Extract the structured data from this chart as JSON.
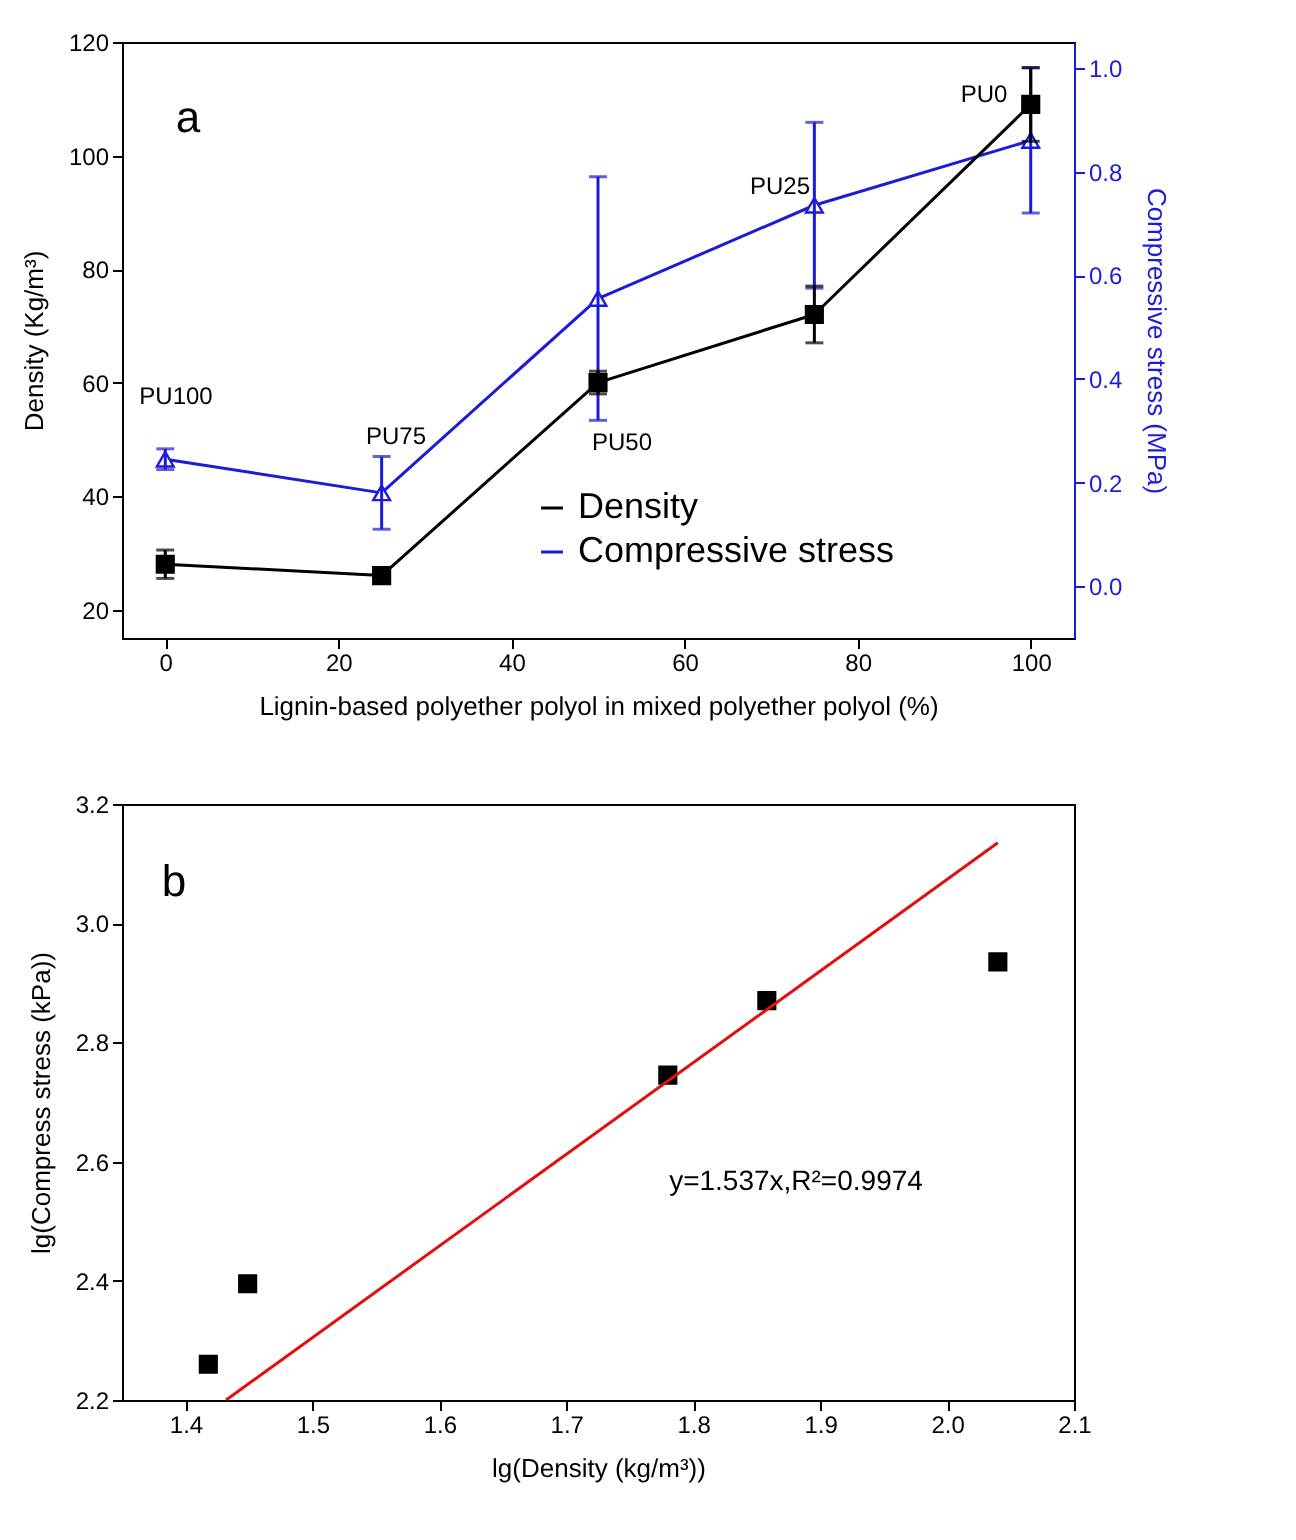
{
  "chart_data": [
    {
      "type": "line",
      "xlabel": "Lignin-based polyether polyol in mixed polyether polyol (%)",
      "ylabel": "Density (Kg/m³)",
      "y2label": "Compressive stress (MPa)",
      "x": [
        0,
        25,
        50,
        75,
        100
      ],
      "xlim": [
        -5,
        105
      ],
      "xticks": [
        0,
        20,
        40,
        60,
        80,
        100
      ],
      "ylim": [
        15,
        120
      ],
      "yticks": [
        20,
        40,
        60,
        80,
        100,
        120
      ],
      "y2lim": [
        -0.1,
        1.05
      ],
      "y2ticks": [
        {
          "value": 0,
          "label": "0.0"
        },
        0.2,
        0.4,
        0.6,
        0.8,
        {
          "value": 1,
          "label": "1.0"
        }
      ],
      "series": [
        {
          "name": "Density",
          "color": "#000000",
          "marker": "square",
          "values": [
            28,
            26,
            60,
            72,
            109
          ],
          "errors": [
            2.5,
            null,
            2,
            5,
            6.5
          ]
        },
        {
          "name": "Compressive stress",
          "color": "#1c1cd6",
          "marker": "triangle",
          "axis": "y2",
          "values": [
            0.245,
            0.18,
            0.555,
            0.735,
            0.86
          ],
          "errors": [
            0.02,
            0.07,
            0.235,
            0.16,
            0.14
          ]
        }
      ],
      "legend": "bottom right",
      "grid": false,
      "annotations": [
        "a",
        "PU100",
        "PU75",
        "PU50",
        "PU25",
        "PU0"
      ]
    },
    {
      "type": "scatter",
      "xlabel": "lg(Density (kg/m³))",
      "ylabel": "lg(Compress stress (kPa))",
      "xlim": [
        1.35,
        2.1
      ],
      "xticks": [
        1.4,
        1.5,
        1.6,
        1.7,
        1.8,
        1.9,
        {
          "value": 2,
          "label": "2.0"
        },
        2.1
      ],
      "ylim": [
        2.2,
        3.2
      ],
      "yticks": [
        2.2,
        2.4,
        2.6,
        2.8,
        {
          "value": 3,
          "label": "3.0"
        },
        3.2
      ],
      "x": [
        1.418,
        1.449,
        1.78,
        1.858,
        2.04
      ],
      "marker": "square",
      "grid": false,
      "series": [
        {
          "color": "#000000",
          "values": [
            2.26,
            2.395,
            2.745,
            2.87,
            2.935
          ]
        },
        {
          "type": "line",
          "color": "#e01010",
          "marker": "none",
          "x": [
            1.432,
            2.04
          ],
          "values": [
            2.2,
            3.135
          ],
          "line_style": "solid"
        }
      ],
      "annotations": [
        "b",
        "y=1.537x,R²=0.9974"
      ]
    }
  ]
}
